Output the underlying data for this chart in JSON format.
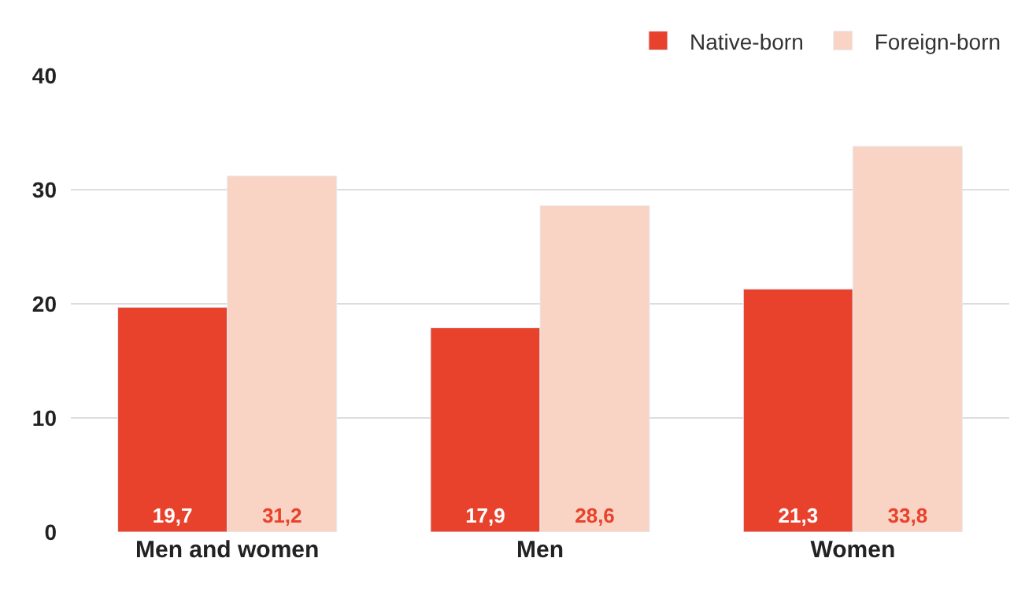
{
  "chart_data": {
    "type": "bar",
    "categories": [
      "Men and women",
      "Men",
      "Women"
    ],
    "series": [
      {
        "name": "Native-born",
        "color": "#e8412c",
        "values": [
          19.7,
          17.9,
          21.3
        ],
        "value_labels": [
          "19,7",
          "17,9",
          "21,3"
        ]
      },
      {
        "name": "Foreign-born",
        "color": "#f9d3c3",
        "values": [
          31.2,
          28.6,
          33.8
        ],
        "value_labels": [
          "31,2",
          "28,6",
          "33,8"
        ]
      }
    ],
    "ylim": [
      0,
      40
    ],
    "yticks": [
      0,
      10,
      20,
      30,
      40
    ],
    "grid": "y",
    "legend": "top right"
  }
}
